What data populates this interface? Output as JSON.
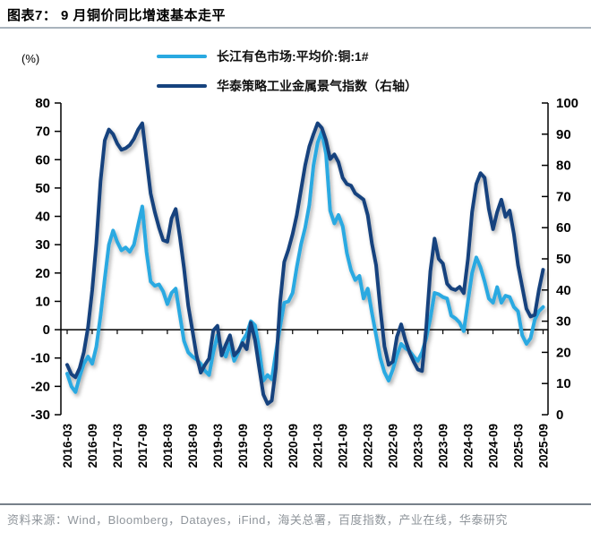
{
  "header": {
    "title": "图表7：  9 月铜价同比增速基本走平"
  },
  "chart_data": {
    "type": "line",
    "title": "9月铜价同比增速基本走平",
    "x_interval": "monthly",
    "x_range": [
      "2016-03",
      "2025-09"
    ],
    "x_tick_labels": [
      "2016-03",
      "2016-09",
      "2017-03",
      "2017-09",
      "2018-03",
      "2018-09",
      "2019-03",
      "2019-09",
      "2020-03",
      "2020-09",
      "2021-03",
      "2021-09",
      "2022-03",
      "2022-09",
      "2023-03",
      "2023-09",
      "2024-03",
      "2024-09",
      "2025-03",
      "2025-09"
    ],
    "left_axis": {
      "label": "(%)",
      "min": -30,
      "max": 80,
      "ticks": [
        80,
        70,
        60,
        50,
        40,
        30,
        20,
        10,
        0,
        -10,
        -20,
        -30
      ]
    },
    "right_axis": {
      "min": 0,
      "max": 100,
      "ticks": [
        100,
        90,
        80,
        70,
        60,
        50,
        40,
        30,
        20,
        10,
        0
      ]
    },
    "grid": false,
    "zero_line": true,
    "legend_position": "top",
    "series": [
      {
        "name": "长江有色市场:平均价:铜:1#",
        "axis": "left",
        "color": "#29A9E1",
        "values": [
          -15.5,
          -20,
          -22,
          -16.5,
          -12,
          -9.5,
          -12,
          -6,
          5,
          18,
          30,
          35,
          31,
          28,
          29,
          27.5,
          30,
          37,
          43.5,
          27.5,
          17,
          15.5,
          16,
          13.5,
          9,
          13,
          14.5,
          5,
          -4,
          -8,
          -9.5,
          -10.5,
          -12,
          -14.5,
          -16,
          -8,
          -2,
          -7,
          -9.5,
          -5,
          -11,
          -8,
          -4,
          -1.5,
          3,
          1.5,
          -7,
          -18,
          -16,
          -17.5,
          -8,
          1,
          9.5,
          10,
          13,
          22,
          30,
          36,
          44,
          58,
          66,
          70,
          62,
          42,
          37.5,
          40.5,
          36.5,
          27,
          21,
          17.5,
          19,
          11,
          14.5,
          6,
          -2,
          -10,
          -15,
          -18,
          -14,
          -9,
          -5,
          -6.5,
          -7.5,
          -9.5,
          -11,
          -8,
          -3,
          4,
          13,
          12.5,
          11.5,
          11,
          5,
          4,
          2.5,
          -0.5,
          10,
          20,
          25.5,
          22,
          17,
          11,
          9.5,
          15,
          9.5,
          12,
          11.5,
          8,
          6.5,
          -2,
          -5,
          -3,
          3.5,
          6.5,
          8
        ]
      },
      {
        "name": "华泰策略工业金属景气指数（右轴）",
        "axis": "right",
        "color": "#16437E",
        "values": [
          16,
          13,
          12,
          15,
          20,
          28,
          40,
          55,
          75,
          88,
          91.5,
          90,
          87,
          85,
          85.5,
          86.5,
          88.5,
          91.5,
          93.5,
          82,
          71,
          65,
          60,
          56,
          55.5,
          63,
          66,
          57,
          47,
          35,
          27,
          19,
          13.5,
          16,
          18,
          27,
          28.5,
          19,
          22.5,
          25.5,
          19,
          20.5,
          23,
          21,
          29.5,
          24,
          15,
          6.5,
          3.5,
          4.5,
          15,
          36,
          49,
          53,
          58,
          64,
          72,
          80,
          86,
          90,
          93.5,
          92,
          88,
          82,
          83.5,
          81,
          76,
          74,
          73.5,
          71,
          70,
          69,
          64,
          55,
          48,
          34,
          22,
          16,
          17,
          25,
          29,
          24,
          20,
          17,
          14.5,
          14,
          28,
          46,
          56.5,
          50,
          48.5,
          42,
          40.5,
          40,
          41,
          39,
          50,
          65,
          74,
          77.5,
          76,
          66,
          59.5,
          65,
          69,
          63.5,
          65.5,
          58,
          48,
          41,
          34,
          31.5,
          32,
          40,
          46.5
        ]
      }
    ]
  },
  "footer": {
    "source": "资料来源：Wind，Bloomberg，Datayes，iFind，海关总署，百度指数，产业在线，华泰研究"
  }
}
